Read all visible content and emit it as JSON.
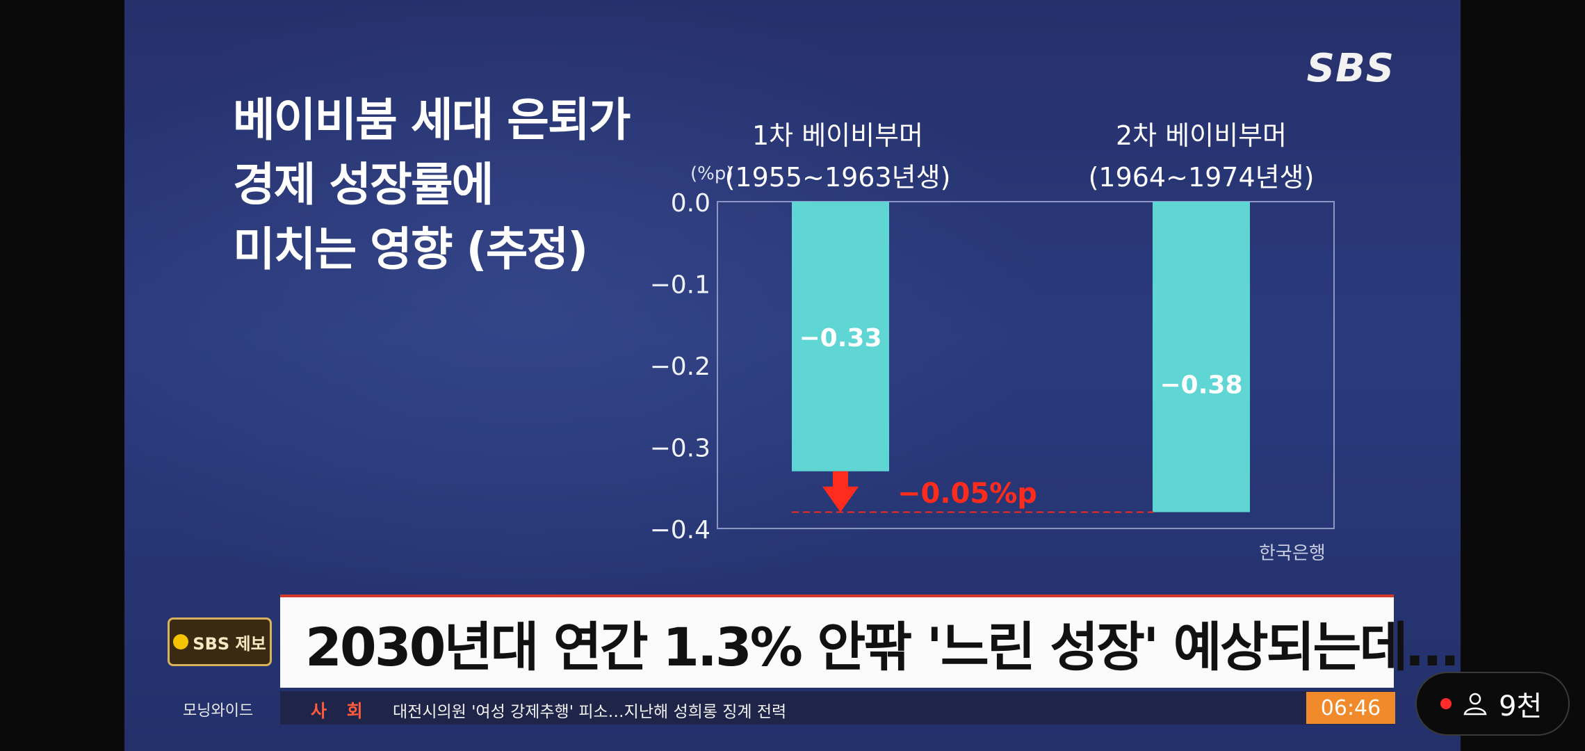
{
  "broadcast": {
    "logo": "SBS",
    "headline": [
      "베이비붐 세대 은퇴가",
      "경제 성장률에",
      "미치는 영향 (추정)"
    ],
    "source": "한국은행"
  },
  "chart_data": {
    "type": "bar",
    "unit_label": "(%p)",
    "categories": [
      [
        "1차 베이비부머",
        "(1955~1963년생)"
      ],
      [
        "2차 베이비부머",
        "(1964~1974년생)"
      ]
    ],
    "values": [
      -0.33,
      -0.38
    ],
    "value_labels": [
      "-0.33",
      "-0.38"
    ],
    "ylim": [
      -0.4,
      0.0
    ],
    "yticks": [
      "0.0",
      "-0.1",
      "-0.2",
      "-0.3",
      "-0.4"
    ],
    "ytick_values": [
      0.0,
      -0.1,
      -0.2,
      -0.3,
      -0.4
    ],
    "bar_color": "#5fd6d4",
    "annotation": {
      "text": "-0.05%p",
      "color": "#ff2b1c"
    },
    "grid": false
  },
  "lower_third": {
    "tag": "SBS 제보",
    "banner": "2030년대 연간 1.3% 안팎 '느린 성장' 예상되는데…",
    "program": "모닝와이드",
    "ticker_category": "사 회",
    "ticker_text": "대전시의원 '여성 강제추행' 피소…지난해 성희롱 징계 전력",
    "time": "06:46"
  },
  "overlay": {
    "viewer_icon": "person-icon",
    "viewers": "9천"
  }
}
